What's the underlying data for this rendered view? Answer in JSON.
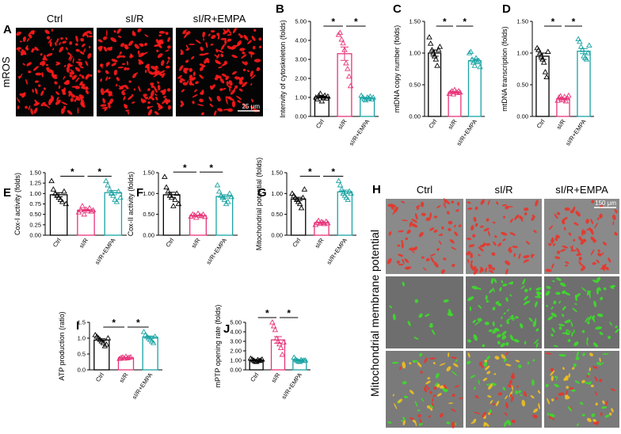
{
  "chart_data": [
    {
      "type": "bar",
      "panel": "B",
      "ylabel": "Intenvity of cytoskeleton (folds)",
      "categories": [
        "Ctrl",
        "sI/R",
        "sI/R+EMPA"
      ],
      "colors": [
        "#000000",
        "#e8357a",
        "#1aa3a3"
      ],
      "values": [
        1.02,
        3.3,
        0.97
      ],
      "errors": [
        0.05,
        0.35,
        0.03
      ],
      "points": [
        [
          1.0,
          0.9,
          1.1,
          1.2,
          0.8,
          1.0,
          1.1,
          0.95,
          1.05
        ],
        [
          4.3,
          4.4,
          4.05,
          3.85,
          3.5,
          2.8,
          2.5,
          2.1,
          1.6
        ],
        [
          1.1,
          1.0,
          0.9,
          0.85,
          1.0,
          0.95,
          1.05,
          0.9,
          1.0
        ]
      ],
      "ylim": [
        0,
        5
      ],
      "yticks": [
        {
          "value": 0,
          "label": "0.00"
        },
        {
          "value": 1,
          "label": "1.00"
        },
        {
          "value": 2,
          "label": "2.00"
        },
        {
          "value": 3,
          "label": "3.00"
        },
        {
          "value": 4,
          "label": "4.00"
        },
        {
          "value": 5,
          "label": "5.00"
        }
      ],
      "significance": [
        "*",
        "*"
      ]
    },
    {
      "type": "bar",
      "panel": "C",
      "ylabel": "mtDNA copy number (folds)",
      "categories": [
        "Ctrl",
        "sI/R",
        "sI/R+EMPA"
      ],
      "colors": [
        "#000000",
        "#e8357a",
        "#1aa3a3"
      ],
      "values": [
        1.0,
        0.38,
        0.88
      ],
      "errors": [
        0.05,
        0.01,
        0.03
      ],
      "points": [
        [
          1.25,
          1.15,
          1.05,
          1.0,
          0.95,
          0.9,
          0.8,
          1.05,
          1.1
        ],
        [
          0.36,
          0.38,
          0.4,
          0.35,
          0.42,
          0.39,
          0.37,
          0.4,
          0.38
        ],
        [
          1.0,
          1.02,
          0.9,
          0.85,
          0.8,
          0.92,
          0.86,
          0.88,
          0.78
        ]
      ],
      "ylim": [
        0,
        1.5
      ],
      "yticks": [
        {
          "value": 0,
          "label": "0.00"
        },
        {
          "value": 0.5,
          "label": "0.50"
        },
        {
          "value": 1,
          "label": "1.00"
        },
        {
          "value": 1.5,
          "label": "1.50"
        }
      ],
      "significance": [
        "*",
        "*"
      ]
    },
    {
      "type": "bar",
      "panel": "D",
      "ylabel": "mtDNA transcription (folds)",
      "categories": [
        "Ctrl",
        "sI/R",
        "sI/R+EMPA"
      ],
      "colors": [
        "#000000",
        "#e8357a",
        "#1aa3a3"
      ],
      "values": [
        0.95,
        0.28,
        1.03
      ],
      "errors": [
        0.05,
        0.01,
        0.04
      ],
      "points": [
        [
          1.08,
          1.05,
          1.0,
          0.95,
          0.9,
          0.85,
          0.7,
          0.62,
          1.02
        ],
        [
          0.25,
          0.3,
          0.32,
          0.28,
          0.26,
          0.31,
          0.24,
          0.29,
          0.33
        ],
        [
          1.22,
          1.18,
          1.1,
          1.05,
          0.95,
          0.92,
          0.9,
          1.0,
          1.12
        ]
      ],
      "ylim": [
        0,
        1.5
      ],
      "yticks": [
        {
          "value": 0,
          "label": "0.00"
        },
        {
          "value": 0.5,
          "label": "0.50"
        },
        {
          "value": 1,
          "label": "1.00"
        },
        {
          "value": 1.5,
          "label": "1.50"
        }
      ],
      "significance": [
        "*",
        "*"
      ]
    },
    {
      "type": "bar",
      "panel": "E",
      "ylabel": "Cox-I activity (folds)",
      "categories": [
        "Ctrl",
        "sI/R",
        "sI/R+EMPA"
      ],
      "colors": [
        "#000000",
        "#e8357a",
        "#1aa3a3"
      ],
      "values": [
        0.97,
        0.6,
        1.02
      ],
      "errors": [
        0.05,
        0.02,
        0.05
      ],
      "points": [
        [
          1.3,
          1.1,
          1.0,
          0.95,
          0.9,
          0.85,
          0.8,
          1.05,
          0.75
        ],
        [
          0.55,
          0.6,
          0.7,
          0.5,
          0.62,
          0.58,
          0.65,
          0.57,
          0.6
        ],
        [
          1.3,
          1.2,
          1.1,
          1.0,
          0.95,
          0.85,
          0.8,
          1.05,
          0.9
        ]
      ],
      "ylim": [
        0,
        1.5
      ],
      "yticks": [
        {
          "value": 0,
          "label": "0.00"
        },
        {
          "value": 0.25,
          "label": "0.25"
        },
        {
          "value": 0.5,
          "label": "0.50"
        },
        {
          "value": 0.75,
          "label": "0.75"
        },
        {
          "value": 1,
          "label": "1.00"
        },
        {
          "value": 1.25,
          "label": "1.25"
        },
        {
          "value": 1.5,
          "label": "1.50"
        }
      ],
      "significance": [
        "*",
        "*"
      ]
    },
    {
      "type": "bar",
      "panel": "F",
      "ylabel": "Cox-II activity (folds)",
      "categories": [
        "Ctrl",
        "sI/R",
        "sI/R+EMPA"
      ],
      "colors": [
        "#000000",
        "#e8357a",
        "#1aa3a3"
      ],
      "values": [
        0.97,
        0.47,
        0.93
      ],
      "errors": [
        0.06,
        0.01,
        0.04
      ],
      "points": [
        [
          1.4,
          1.15,
          1.05,
          0.95,
          0.9,
          0.7,
          0.85,
          1.0,
          0.75
        ],
        [
          0.45,
          0.5,
          0.48,
          0.42,
          0.52,
          0.47,
          0.46,
          0.5,
          0.44
        ],
        [
          1.2,
          1.05,
          0.95,
          0.9,
          0.85,
          0.75,
          0.8,
          1.0,
          0.92
        ]
      ],
      "ylim": [
        0,
        1.5
      ],
      "yticks": [
        {
          "value": 0,
          "label": "0.00"
        },
        {
          "value": 0.5,
          "label": "0.50"
        },
        {
          "value": 1,
          "label": "1.00"
        },
        {
          "value": 1.5,
          "label": "1.50"
        }
      ],
      "significance": [
        "*",
        "*"
      ]
    },
    {
      "type": "bar",
      "panel": "G",
      "ylabel": "Mitochondrial potential (folds)",
      "categories": [
        "Ctrl",
        "sI/R",
        "sI/R+EMPA"
      ],
      "colors": [
        "#000000",
        "#e8357a",
        "#1aa3a3"
      ],
      "values": [
        0.87,
        0.3,
        1.04
      ],
      "errors": [
        0.04,
        0.01,
        0.04
      ],
      "points": [
        [
          1.0,
          0.95,
          0.9,
          0.85,
          0.8,
          0.75,
          0.65,
          0.9,
          1.1
        ],
        [
          0.25,
          0.3,
          0.35,
          0.28,
          0.32,
          0.3,
          0.27,
          0.33,
          0.29
        ],
        [
          1.3,
          1.2,
          1.1,
          1.0,
          0.95,
          0.9,
          0.85,
          1.05,
          1.0
        ]
      ],
      "ylim": [
        0,
        1.5
      ],
      "yticks": [
        {
          "value": 0,
          "label": "0.00"
        },
        {
          "value": 0.5,
          "label": "0.50"
        },
        {
          "value": 1,
          "label": "1.00"
        },
        {
          "value": 1.5,
          "label": "1.50"
        }
      ],
      "significance": [
        "*",
        "*"
      ]
    },
    {
      "type": "bar",
      "panel": "I",
      "ylabel": "ATP production (ratio)",
      "categories": [
        "Ctrl",
        "sI/R",
        "sI/R+EMPA"
      ],
      "colors": [
        "#000000",
        "#e8357a",
        "#1aa3a3"
      ],
      "values": [
        0.94,
        0.38,
        1.03
      ],
      "errors": [
        0.04,
        0.01,
        0.04
      ],
      "points": [
        [
          1.1,
          1.05,
          1.0,
          0.95,
          0.9,
          0.85,
          0.75,
          0.8,
          1.0
        ],
        [
          0.35,
          0.38,
          0.4,
          0.36,
          0.42,
          0.37,
          0.39,
          0.4
        ],
        [
          1.2,
          1.1,
          1.05,
          1.0,
          0.95,
          0.9,
          0.85,
          1.05
        ]
      ],
      "ylim": [
        0,
        1.5
      ],
      "yticks": [
        {
          "value": 0,
          "label": "0.0"
        },
        0.5,
        {
          "value": 1,
          "label": "1.0"
        },
        1.5
      ],
      "significance": [
        "*",
        "*"
      ]
    },
    {
      "type": "bar",
      "panel": "J",
      "ylabel": "mPTP opening rate (folds)",
      "categories": [
        "Ctrl",
        "sI/R",
        "sI/R+EMPA"
      ],
      "colors": [
        "#000000",
        "#e8357a",
        "#1aa3a3"
      ],
      "values": [
        1.03,
        3.15,
        1.02
      ],
      "errors": [
        0.04,
        0.35,
        0.05
      ],
      "points": [
        [
          1.2,
          1.1,
          1.0,
          0.9,
          0.85,
          1.05,
          0.95,
          1.0,
          1.1
        ],
        [
          5.0,
          4.6,
          4.2,
          3.3,
          3.0,
          2.7,
          2.3,
          1.6,
          2.9
        ],
        [
          1.3,
          1.1,
          1.0,
          0.9,
          0.85,
          1.05,
          0.95,
          1.0,
          1.0
        ]
      ],
      "ylim": [
        0,
        5
      ],
      "yticks": [
        {
          "value": 0,
          "label": "0.00"
        },
        {
          "value": 1,
          "label": "1.00"
        },
        {
          "value": 2,
          "label": "2.00"
        },
        {
          "value": 3,
          "label": "3.00"
        },
        {
          "value": 4,
          "label": "4.00"
        },
        {
          "value": 5,
          "label": "5.00"
        }
      ],
      "significance": [
        "*",
        "*"
      ]
    }
  ],
  "images": [
    {
      "panel": "A",
      "columns": [
        "Ctrl",
        "sI/R",
        "sI/R+EMPA"
      ],
      "row_label": "mROS",
      "scale_bar": "25 μm"
    },
    {
      "panel": "H",
      "columns": [
        "Ctrl",
        "sI/R",
        "sI/R+EMPA"
      ],
      "row_label": "Mitochondrial membrane potential",
      "scale_bar": "150 μm"
    }
  ]
}
